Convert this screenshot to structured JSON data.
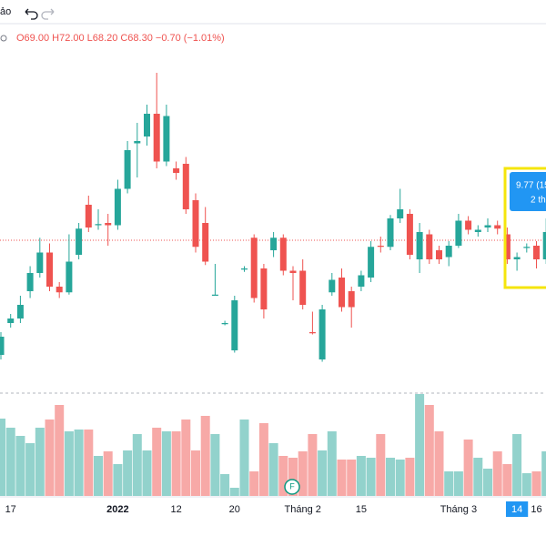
{
  "toolbar": {
    "label": "ảo"
  },
  "legend": {
    "ohlc": "O69.00 H72.00 L68.20 C68.30 −0.70 (−1.01%)"
  },
  "tooltip": {
    "line1": "9.77 (15",
    "line2": "2 th"
  },
  "marker": {
    "label": "F"
  },
  "chart_data": {
    "type": "candlestick",
    "up_color": "#26a69a",
    "down_color": "#ef5350",
    "ylim": [
      55,
      87
    ],
    "volume_ylim": [
      0,
      120
    ],
    "categories": [
      null,
      "17",
      null,
      null,
      null,
      null,
      null,
      null,
      null,
      null,
      null,
      null,
      "2022",
      null,
      null,
      null,
      null,
      null,
      "12",
      null,
      null,
      null,
      null,
      null,
      "20",
      null,
      null,
      null,
      null,
      null,
      null,
      "Tháng 2",
      null,
      null,
      null,
      null,
      null,
      "15",
      null,
      null,
      null,
      null,
      null,
      null,
      null,
      null,
      null,
      "Tháng 3",
      null,
      null,
      null,
      null,
      null,
      "14",
      null,
      "16",
      null
    ],
    "open": [
      58.2,
      61.0,
      61.4,
      63.8,
      65.4,
      67.2,
      64.2,
      63.7,
      67.0,
      71.4,
      69.6,
      69.8,
      69.6,
      72.8,
      76.8,
      77.4,
      79.4,
      75.2,
      74.6,
      75.0,
      71.8,
      69.8,
      63.4,
      60.9,
      58.6,
      65.7,
      68.5,
      65.8,
      67.4,
      68.5,
      65.6,
      65.6,
      60.2,
      57.8,
      63.7,
      65.0,
      63.8,
      64.2,
      65.0,
      67.8,
      67.7,
      70.2,
      70.6,
      66.6,
      68.8,
      67.4,
      66.8,
      67.8,
      70.0,
      69.0,
      69.4,
      69.6,
      68.8,
      66.6,
      67.6,
      67.8,
      66.6
    ],
    "high": [
      60.2,
      61.8,
      63.4,
      66.0,
      68.5,
      68.0,
      64.6,
      68.8,
      69.8,
      72.2,
      71.0,
      70.6,
      73.6,
      77.0,
      78.6,
      80.2,
      83.0,
      80.2,
      75.2,
      75.6,
      72.4,
      71.2,
      66.2,
      61.2,
      63.4,
      66.0,
      68.8,
      66.2,
      69.0,
      68.8,
      66.0,
      66.6,
      62.0,
      62.6,
      65.4,
      65.8,
      64.2,
      65.6,
      68.2,
      68.6,
      70.5,
      72.8,
      71.0,
      69.8,
      69.2,
      67.8,
      68.2,
      70.6,
      70.4,
      69.6,
      70.2,
      70.0,
      69.4,
      67.2,
      68.0,
      68.2,
      70.2
    ],
    "low": [
      57.8,
      60.6,
      61.0,
      63.2,
      65.0,
      63.8,
      63.2,
      63.5,
      66.6,
      69.0,
      69.2,
      67.8,
      69.2,
      72.4,
      73.8,
      76.6,
      74.6,
      74.8,
      73.6,
      70.6,
      67.2,
      66.1,
      63.4,
      60.8,
      58.4,
      65.5,
      62.8,
      61.4,
      66.8,
      65.2,
      63.0,
      62.2,
      60.0,
      57.6,
      63.4,
      62.0,
      60.6,
      63.8,
      64.6,
      67.2,
      67.4,
      69.8,
      66.6,
      65.4,
      66.2,
      66.2,
      66.0,
      67.6,
      68.8,
      68.6,
      69.0,
      68.8,
      66.2,
      65.6,
      67.2,
      65.8,
      66.2
    ],
    "close": [
      59.8,
      61.4,
      62.6,
      65.4,
      67.2,
      64.2,
      63.7,
      66.4,
      69.3,
      69.4,
      69.7,
      69.6,
      72.8,
      76.2,
      77.0,
      79.4,
      75.2,
      79.2,
      74.2,
      71.0,
      67.7,
      66.4,
      63.5,
      61.0,
      63.0,
      65.8,
      63.2,
      62.2,
      68.5,
      65.6,
      65.4,
      62.6,
      60.1,
      62.2,
      64.8,
      62.4,
      62.4,
      65.2,
      67.7,
      67.7,
      70.2,
      71.0,
      67.0,
      69.0,
      66.6,
      66.6,
      67.8,
      70.0,
      69.2,
      69.2,
      69.6,
      69.3,
      66.6,
      66.8,
      67.7,
      66.6,
      69.0
    ],
    "volume": [
      85,
      75,
      66,
      58,
      75,
      84,
      100,
      71,
      73,
      73,
      44,
      49,
      35,
      50,
      68,
      50,
      75,
      71,
      71,
      84,
      50,
      88,
      68,
      24,
      9,
      84,
      27,
      80,
      58,
      44,
      42,
      49,
      68,
      50,
      71,
      40,
      40,
      44,
      42,
      68,
      42,
      40,
      42,
      112,
      100,
      71,
      27,
      27,
      62,
      42,
      30,
      49,
      35,
      68,
      25,
      27,
      49
    ]
  }
}
